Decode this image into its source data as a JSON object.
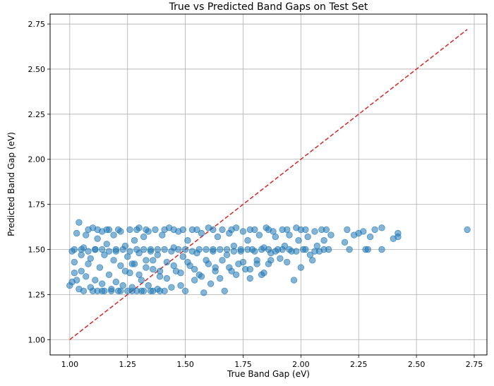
{
  "chart_data": {
    "type": "scatter",
    "title": "True vs Predicted Band Gaps on Test Set",
    "xlabel": "True Band Gap (eV)",
    "ylabel": "Predicted Band Gap (eV)",
    "xlim": [
      0.915,
      2.805
    ],
    "ylim": [
      0.915,
      2.805
    ],
    "xticks": [
      "1.00",
      "1.25",
      "1.50",
      "1.75",
      "2.00",
      "2.25",
      "2.50",
      "2.75"
    ],
    "yticks": [
      "1.00",
      "1.25",
      "1.50",
      "1.75",
      "2.00",
      "2.25",
      "2.50",
      "2.75"
    ],
    "grid": true,
    "colors": {
      "points": "#1f77b4",
      "ideal_line": "#d62728",
      "grid": "#b0b0b0"
    },
    "reference_line": {
      "style": "dashed",
      "from": [
        1.0,
        1.0
      ],
      "to": [
        2.72,
        2.72
      ]
    },
    "series": [
      {
        "points": [
          [
            1.0,
            1.3
          ],
          [
            1.01,
            1.32
          ],
          [
            1.01,
            1.49
          ],
          [
            1.02,
            1.37
          ],
          [
            1.02,
            1.43
          ],
          [
            1.03,
            1.33
          ],
          [
            1.03,
            1.59
          ],
          [
            1.04,
            1.28
          ],
          [
            1.04,
            1.65
          ],
          [
            1.05,
            1.38
          ],
          [
            1.05,
            1.47
          ],
          [
            1.06,
            1.27
          ],
          [
            1.06,
            1.51
          ],
          [
            1.07,
            1.35
          ],
          [
            1.07,
            1.58
          ],
          [
            1.08,
            1.42
          ],
          [
            1.08,
            1.61
          ],
          [
            1.09,
            1.29
          ],
          [
            1.09,
            1.45
          ],
          [
            1.1,
            1.62
          ],
          [
            1.11,
            1.33
          ],
          [
            1.11,
            1.5
          ],
          [
            1.12,
            1.27
          ],
          [
            1.12,
            1.56
          ],
          [
            1.13,
            1.4
          ],
          [
            1.14,
            1.6
          ],
          [
            1.14,
            1.31
          ],
          [
            1.15,
            1.47
          ],
          [
            1.15,
            1.27
          ],
          [
            1.16,
            1.53
          ],
          [
            1.17,
            1.36
          ],
          [
            1.17,
            1.61
          ],
          [
            1.18,
            1.28
          ],
          [
            1.19,
            1.44
          ],
          [
            1.19,
            1.58
          ],
          [
            1.2,
            1.32
          ],
          [
            1.2,
            1.49
          ],
          [
            1.21,
            1.27
          ],
          [
            1.22,
            1.41
          ],
          [
            1.22,
            1.6
          ],
          [
            1.23,
            1.3
          ],
          [
            1.24,
            1.52
          ],
          [
            1.25,
            1.27
          ],
          [
            1.25,
            1.46
          ],
          [
            1.26,
            1.37
          ],
          [
            1.26,
            1.61
          ],
          [
            1.27,
            1.29
          ],
          [
            1.28,
            1.55
          ],
          [
            1.28,
            1.42
          ],
          [
            1.29,
            1.27
          ],
          [
            1.3,
            1.48
          ],
          [
            1.3,
            1.62
          ],
          [
            1.31,
            1.33
          ],
          [
            1.32,
            1.57
          ],
          [
            1.32,
            1.27
          ],
          [
            1.33,
            1.44
          ],
          [
            1.34,
            1.6
          ],
          [
            1.34,
            1.3
          ],
          [
            1.35,
            1.5
          ],
          [
            1.36,
            1.27
          ],
          [
            1.36,
            1.39
          ],
          [
            1.37,
            1.61
          ],
          [
            1.38,
            1.28
          ],
          [
            1.38,
            1.47
          ],
          [
            1.39,
            1.35
          ],
          [
            1.4,
            1.58
          ],
          [
            1.41,
            1.27
          ],
          [
            1.42,
            1.43
          ],
          [
            1.43,
            1.62
          ],
          [
            1.44,
            1.29
          ],
          [
            1.45,
            1.51
          ],
          [
            1.46,
            1.38
          ],
          [
            1.47,
            1.6
          ],
          [
            1.48,
            1.3
          ],
          [
            1.49,
            1.46
          ],
          [
            1.5,
            1.27
          ],
          [
            1.51,
            1.55
          ],
          [
            1.52,
            1.41
          ],
          [
            1.53,
            1.61
          ],
          [
            1.54,
            1.33
          ],
          [
            1.55,
            1.48
          ],
          [
            1.56,
            1.36
          ],
          [
            1.57,
            1.59
          ],
          [
            1.58,
            1.26
          ],
          [
            1.59,
            1.44
          ],
          [
            1.6,
            1.62
          ],
          [
            1.61,
            1.31
          ],
          [
            1.62,
            1.5
          ],
          [
            1.63,
            1.4
          ],
          [
            1.64,
            1.57
          ],
          [
            1.65,
            1.34
          ],
          [
            1.66,
            1.61
          ],
          [
            1.67,
            1.27
          ],
          [
            1.68,
            1.47
          ],
          [
            1.69,
            1.59
          ],
          [
            1.7,
            1.38
          ],
          [
            1.71,
            1.52
          ],
          [
            1.72,
            1.62
          ],
          [
            1.73,
            1.42
          ],
          [
            1.74,
            1.49
          ],
          [
            1.75,
            1.6
          ],
          [
            1.76,
            1.39
          ],
          [
            1.77,
            1.55
          ],
          [
            1.78,
            1.34
          ],
          [
            1.79,
            1.5
          ],
          [
            1.8,
            1.61
          ],
          [
            1.81,
            1.44
          ],
          [
            1.82,
            1.58
          ],
          [
            1.83,
            1.36
          ],
          [
            1.84,
            1.51
          ],
          [
            1.85,
            1.62
          ],
          [
            1.86,
            1.42
          ],
          [
            1.87,
            1.48
          ],
          [
            1.88,
            1.6
          ],
          [
            1.89,
            1.57
          ],
          [
            1.9,
            1.5
          ],
          [
            1.91,
            1.45
          ],
          [
            1.92,
            1.61
          ],
          [
            1.93,
            1.52
          ],
          [
            1.94,
            1.43
          ],
          [
            1.95,
            1.58
          ],
          [
            1.96,
            1.49
          ],
          [
            1.97,
            1.33
          ],
          [
            1.98,
            1.62
          ],
          [
            1.99,
            1.55
          ],
          [
            2.0,
            1.4
          ],
          [
            2.01,
            1.5
          ],
          [
            2.02,
            1.61
          ],
          [
            2.03,
            1.57
          ],
          [
            2.04,
            1.47
          ],
          [
            2.05,
            1.44
          ],
          [
            2.06,
            1.6
          ],
          [
            2.07,
            1.52
          ],
          [
            2.08,
            1.49
          ],
          [
            2.09,
            1.61
          ],
          [
            2.1,
            1.55
          ],
          [
            2.11,
            1.61
          ],
          [
            2.12,
            1.5
          ],
          [
            2.13,
            1.58
          ],
          [
            2.19,
            1.54
          ],
          [
            2.2,
            1.61
          ],
          [
            2.21,
            1.5
          ],
          [
            2.23,
            1.58
          ],
          [
            2.25,
            1.59
          ],
          [
            2.27,
            1.6
          ],
          [
            2.28,
            1.5
          ],
          [
            2.29,
            1.5
          ],
          [
            2.3,
            1.57
          ],
          [
            2.32,
            1.61
          ],
          [
            2.35,
            1.62
          ],
          [
            2.35,
            1.5
          ],
          [
            2.4,
            1.56
          ],
          [
            2.42,
            1.59
          ],
          [
            2.42,
            1.57
          ],
          [
            2.72,
            1.61
          ],
          [
            1.02,
            1.5
          ],
          [
            1.05,
            1.5
          ],
          [
            1.08,
            1.49
          ],
          [
            1.11,
            1.5
          ],
          [
            1.14,
            1.5
          ],
          [
            1.17,
            1.49
          ],
          [
            1.2,
            1.5
          ],
          [
            1.23,
            1.5
          ],
          [
            1.26,
            1.49
          ],
          [
            1.29,
            1.5
          ],
          [
            1.32,
            1.5
          ],
          [
            1.35,
            1.49
          ],
          [
            1.38,
            1.5
          ],
          [
            1.41,
            1.5
          ],
          [
            1.44,
            1.49
          ],
          [
            1.47,
            1.5
          ],
          [
            1.5,
            1.5
          ],
          [
            1.53,
            1.49
          ],
          [
            1.56,
            1.5
          ],
          [
            1.59,
            1.5
          ],
          [
            1.62,
            1.49
          ],
          [
            1.65,
            1.5
          ],
          [
            1.68,
            1.5
          ],
          [
            1.71,
            1.49
          ],
          [
            1.74,
            1.5
          ],
          [
            1.77,
            1.5
          ],
          [
            1.8,
            1.49
          ],
          [
            1.83,
            1.5
          ],
          [
            1.86,
            1.5
          ],
          [
            1.89,
            1.49
          ],
          [
            1.92,
            1.5
          ],
          [
            1.95,
            1.5
          ],
          [
            1.98,
            1.49
          ],
          [
            2.02,
            1.5
          ],
          [
            2.06,
            1.49
          ],
          [
            2.1,
            1.5
          ],
          [
            1.1,
            1.27
          ],
          [
            1.14,
            1.27
          ],
          [
            1.18,
            1.27
          ],
          [
            1.22,
            1.27
          ],
          [
            1.27,
            1.27
          ],
          [
            1.31,
            1.27
          ],
          [
            1.35,
            1.27
          ],
          [
            1.39,
            1.27
          ],
          [
            1.12,
            1.61
          ],
          [
            1.16,
            1.61
          ],
          [
            1.21,
            1.61
          ],
          [
            1.29,
            1.61
          ],
          [
            1.33,
            1.61
          ],
          [
            1.41,
            1.61
          ],
          [
            1.45,
            1.61
          ],
          [
            1.49,
            1.61
          ],
          [
            1.55,
            1.61
          ],
          [
            1.62,
            1.61
          ],
          [
            1.7,
            1.61
          ],
          [
            1.78,
            1.61
          ],
          [
            1.86,
            1.61
          ],
          [
            1.94,
            1.61
          ],
          [
            2.0,
            1.61
          ],
          [
            1.24,
            1.38
          ],
          [
            1.27,
            1.42
          ],
          [
            1.3,
            1.36
          ],
          [
            1.33,
            1.4
          ],
          [
            1.36,
            1.44
          ],
          [
            1.39,
            1.38
          ],
          [
            1.42,
            1.34
          ],
          [
            1.45,
            1.41
          ],
          [
            1.48,
            1.37
          ],
          [
            1.51,
            1.43
          ],
          [
            1.54,
            1.39
          ],
          [
            1.57,
            1.35
          ],
          [
            1.6,
            1.42
          ],
          [
            1.63,
            1.38
          ],
          [
            1.66,
            1.44
          ],
          [
            1.69,
            1.4
          ],
          [
            1.72,
            1.36
          ],
          [
            1.75,
            1.43
          ],
          [
            1.78,
            1.39
          ],
          [
            1.81,
            1.42
          ],
          [
            1.84,
            1.37
          ],
          [
            1.87,
            1.44
          ]
        ]
      }
    ]
  }
}
